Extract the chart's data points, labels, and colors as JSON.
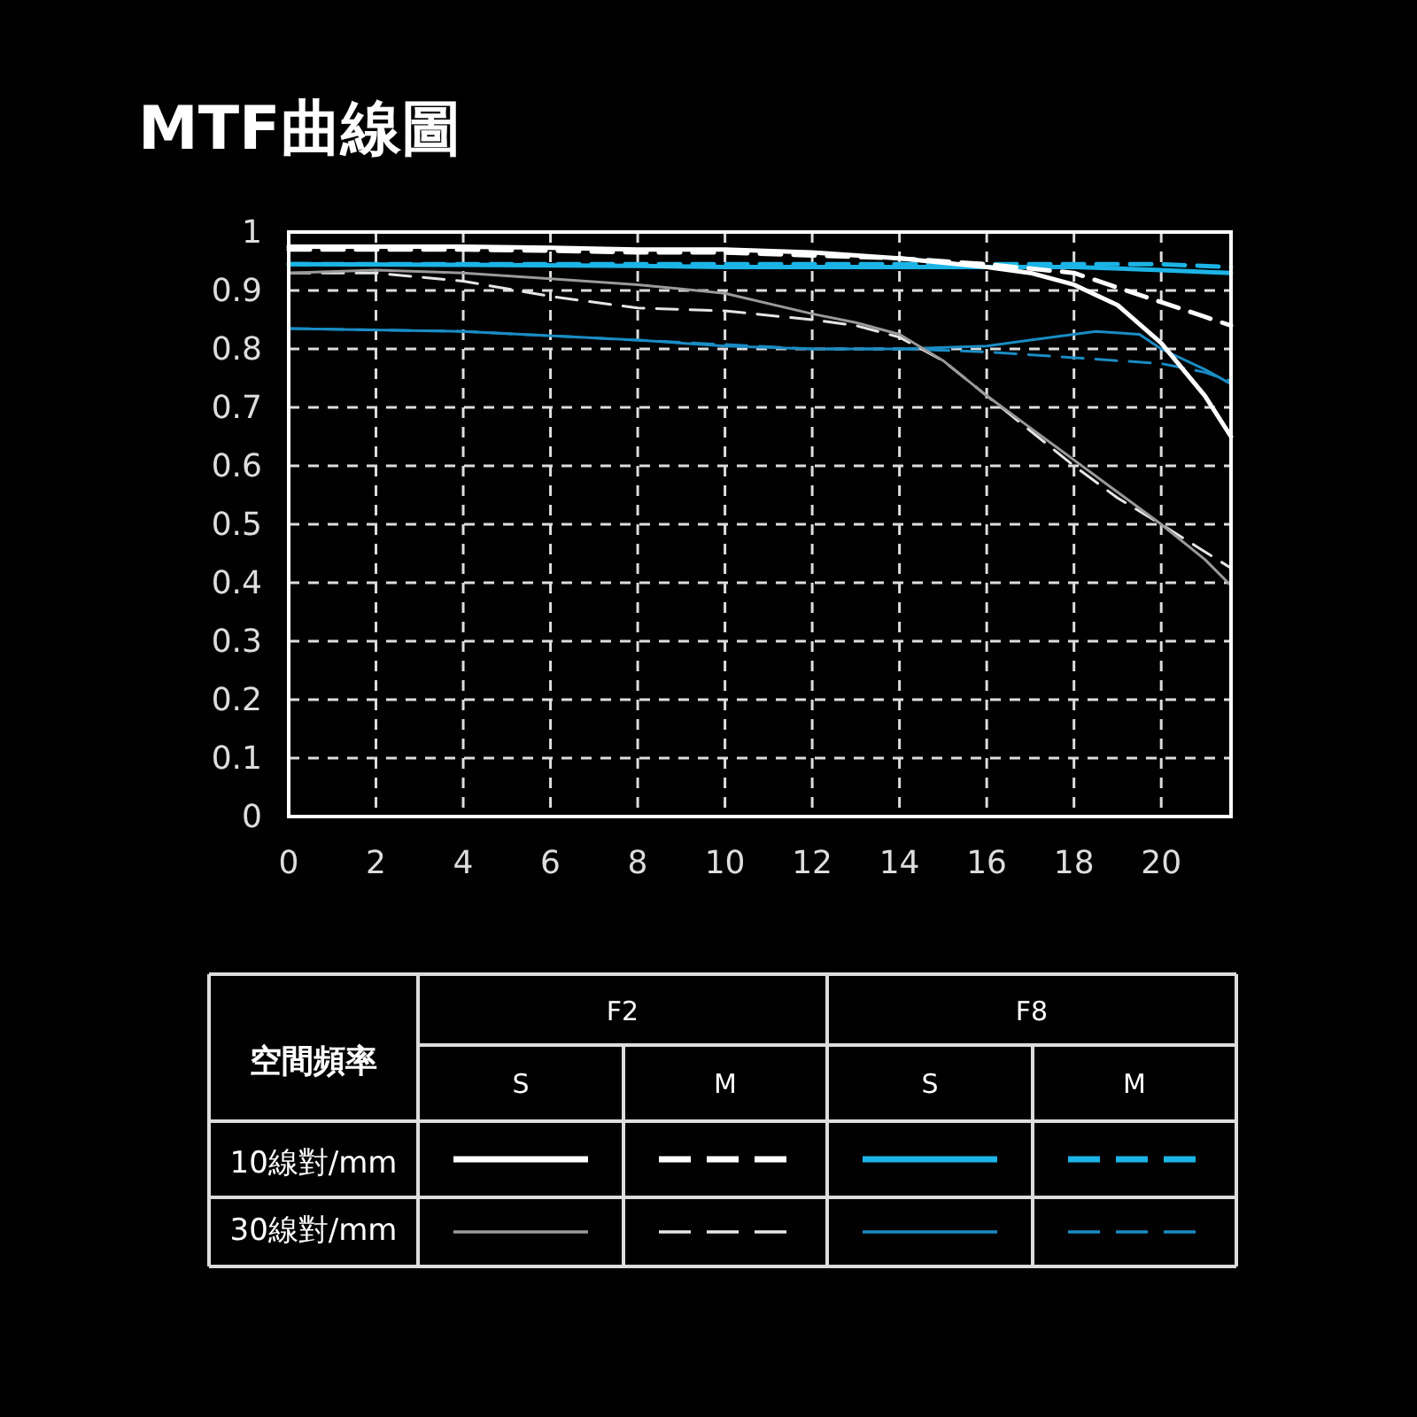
{
  "chart_data": {
    "type": "line",
    "title": "MTF曲線圖",
    "xlim": [
      0,
      21.6
    ],
    "ylim": [
      0,
      1
    ],
    "xticks": [
      0,
      2,
      4,
      6,
      8,
      10,
      12,
      14,
      16,
      18,
      20
    ],
    "yticks": [
      0,
      0.1,
      0.2,
      0.3,
      0.4,
      0.5,
      0.6,
      0.7,
      0.8,
      0.9,
      1
    ],
    "grid": true,
    "annotations": [
      "空間頻率",
      "F2",
      "F8",
      "S",
      "M",
      "S",
      "M",
      "10線對/mm",
      "30線對/mm"
    ],
    "series": [
      {
        "color": "#ffffff",
        "line_style": "solid",
        "x": [
          0,
          2,
          4,
          6,
          8,
          10,
          12,
          14,
          16,
          17,
          18,
          19,
          20,
          21,
          21.6
        ],
        "values": [
          0.975,
          0.975,
          0.975,
          0.973,
          0.97,
          0.97,
          0.965,
          0.955,
          0.94,
          0.93,
          0.91,
          0.875,
          0.81,
          0.72,
          0.65
        ]
      },
      {
        "color": "#ffffff",
        "line_style": "dashed",
        "x": [
          0,
          2,
          4,
          6,
          8,
          10,
          12,
          14,
          16,
          18,
          19,
          20,
          21,
          21.6
        ],
        "values": [
          0.97,
          0.97,
          0.97,
          0.968,
          0.965,
          0.965,
          0.96,
          0.955,
          0.945,
          0.93,
          0.905,
          0.88,
          0.855,
          0.84
        ]
      },
      {
        "color": "#1cb4e6",
        "line_style": "solid",
        "x": [
          0,
          4,
          8,
          10,
          14,
          16,
          18,
          20,
          21.6
        ],
        "values": [
          0.945,
          0.944,
          0.942,
          0.94,
          0.94,
          0.94,
          0.94,
          0.935,
          0.93
        ]
      },
      {
        "color": "#1cb4e6",
        "line_style": "dashed",
        "x": [
          0,
          4,
          8,
          12,
          16,
          18,
          20,
          21.6
        ],
        "values": [
          0.945,
          0.945,
          0.945,
          0.945,
          0.945,
          0.945,
          0.945,
          0.94
        ]
      },
      {
        "color": "#9a9a9a",
        "line_style": "solid",
        "x": [
          0,
          2,
          4,
          6,
          8,
          10,
          12,
          13,
          14,
          15,
          16,
          17,
          18,
          19,
          20,
          21,
          21.6
        ],
        "values": [
          0.93,
          0.935,
          0.93,
          0.92,
          0.91,
          0.895,
          0.86,
          0.845,
          0.825,
          0.78,
          0.72,
          0.665,
          0.61,
          0.555,
          0.5,
          0.44,
          0.395
        ]
      },
      {
        "color": "#e6e6e6",
        "line_style": "dashed",
        "x": [
          0,
          2,
          4,
          6,
          8,
          10,
          12,
          13,
          14,
          15,
          16,
          18,
          19,
          20,
          21.6
        ],
        "values": [
          0.93,
          0.93,
          0.916,
          0.89,
          0.87,
          0.865,
          0.85,
          0.84,
          0.82,
          0.78,
          0.72,
          0.6,
          0.545,
          0.5,
          0.425
        ]
      },
      {
        "color": "#1a8cc4",
        "line_style": "solid",
        "x": [
          0,
          4,
          8,
          10,
          12,
          14,
          16,
          17,
          18,
          18.5,
          19.5,
          20,
          21,
          21.6
        ],
        "values": [
          0.835,
          0.83,
          0.815,
          0.805,
          0.8,
          0.8,
          0.805,
          0.815,
          0.825,
          0.83,
          0.825,
          0.8,
          0.765,
          0.74
        ]
      },
      {
        "color": "#1a8cc4",
        "line_style": "dashed",
        "x": [
          0,
          4,
          8,
          12,
          14,
          16,
          18,
          20,
          21,
          21.6
        ],
        "values": [
          0.835,
          0.83,
          0.815,
          0.8,
          0.8,
          0.795,
          0.785,
          0.775,
          0.76,
          0.745
        ]
      }
    ]
  }
}
